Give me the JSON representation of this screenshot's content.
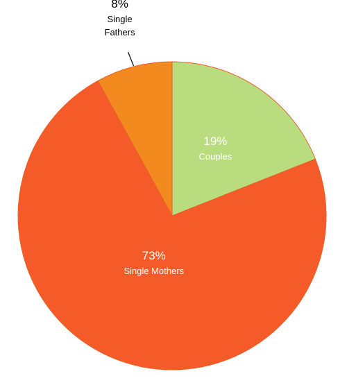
{
  "chart_data": {
    "type": "pie",
    "title": "",
    "start_angle_deg": 0,
    "direction": "clockwise",
    "slices": [
      {
        "name_lines": [
          "Couples"
        ],
        "value": 19,
        "label": "19%",
        "color": "#b9dd7e",
        "label_color": "#ffffff",
        "label_position": "inside"
      },
      {
        "name_lines": [
          "Single Mothers"
        ],
        "value": 73,
        "label": "73%",
        "color": "#f45b29",
        "label_color": "#ffffff",
        "label_position": "inside"
      },
      {
        "name_lines": [
          "Single",
          "Fathers"
        ],
        "value": 8,
        "label": "8%",
        "color": "#f28a1f",
        "label_color": "#000000",
        "label_position": "outside-leader"
      }
    ],
    "slice_border_color": "#e8602a"
  }
}
